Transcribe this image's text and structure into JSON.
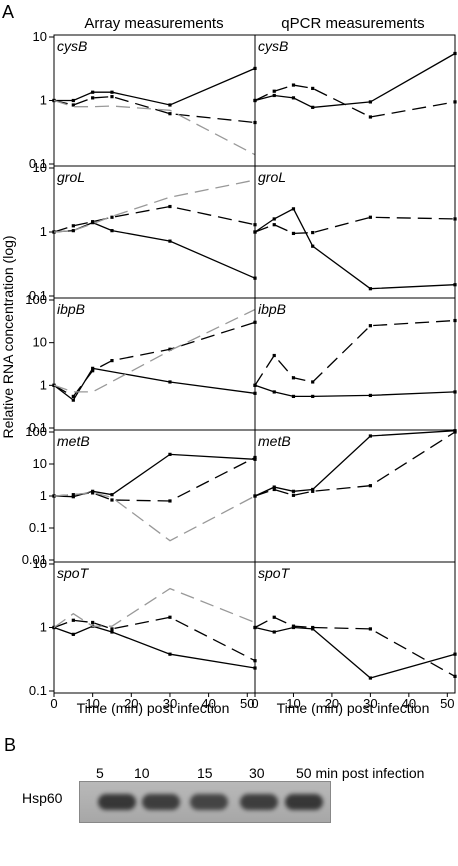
{
  "panel_a_label": "A",
  "panel_b_label": "B",
  "column_titles": [
    "Array measurements",
    "qPCR measurements"
  ],
  "ylabel": "Relative RNA concentration (log)",
  "xlabel": "Time (min) post infection",
  "x_ticks": [
    0,
    10,
    20,
    30,
    40,
    50
  ],
  "series_styles": [
    {
      "dash": "none",
      "color": "#000000",
      "marker": true
    },
    {
      "dash": "14 7",
      "color": "#000000",
      "marker": true
    },
    {
      "dash": "14 7",
      "color": "#999999",
      "marker": false
    }
  ],
  "chart_data": [
    {
      "type": "line",
      "row": 0,
      "col": 0,
      "gene": "cysB",
      "xlim": [
        0,
        52
      ],
      "ylim": [
        0.1,
        10
      ],
      "log_y": true,
      "yticks": [
        0.1,
        1,
        10
      ],
      "ytick_labels": [
        "0.1",
        "1",
        "10"
      ],
      "series": [
        {
          "x": [
            0,
            5,
            10,
            15,
            30,
            52
          ],
          "y": [
            1.0,
            1.0,
            1.35,
            1.35,
            0.85,
            3.2
          ]
        },
        {
          "x": [
            0,
            5,
            10,
            15,
            30,
            52
          ],
          "y": [
            1.0,
            0.85,
            1.1,
            1.15,
            0.62,
            0.45
          ]
        },
        {
          "x": [
            0,
            5,
            10,
            15,
            30,
            52
          ],
          "y": [
            1.0,
            0.8,
            0.8,
            0.82,
            0.7,
            0.14
          ]
        }
      ]
    },
    {
      "type": "line",
      "row": 0,
      "col": 1,
      "gene": "cysB",
      "xlim": [
        0,
        52
      ],
      "ylim": [
        0.1,
        10
      ],
      "log_y": true,
      "series": [
        {
          "x": [
            0,
            5,
            10,
            15,
            30,
            52
          ],
          "y": [
            1.0,
            1.2,
            1.1,
            0.78,
            0.95,
            5.5
          ]
        },
        {
          "x": [
            0,
            5,
            10,
            15,
            30,
            52
          ],
          "y": [
            1.0,
            1.4,
            1.75,
            1.55,
            0.55,
            0.95
          ]
        }
      ]
    },
    {
      "type": "line",
      "row": 1,
      "col": 0,
      "gene": "groL",
      "xlim": [
        0,
        52
      ],
      "ylim": [
        0.1,
        10
      ],
      "log_y": true,
      "yticks": [
        0.1,
        1,
        10
      ],
      "ytick_labels": [
        "0.1",
        "1",
        "10"
      ],
      "series": [
        {
          "x": [
            0,
            5,
            10,
            15,
            30,
            52
          ],
          "y": [
            1.0,
            1.05,
            1.4,
            1.05,
            0.72,
            0.19
          ]
        },
        {
          "x": [
            0,
            5,
            10,
            15,
            30,
            52
          ],
          "y": [
            1.0,
            1.25,
            1.45,
            1.7,
            2.5,
            1.3
          ]
        },
        {
          "x": [
            0,
            5,
            10,
            15,
            30,
            52
          ],
          "y": [
            1.0,
            1.05,
            1.35,
            1.75,
            3.5,
            6.5
          ]
        }
      ]
    },
    {
      "type": "line",
      "row": 1,
      "col": 1,
      "gene": "groL",
      "xlim": [
        0,
        52
      ],
      "ylim": [
        0.1,
        10
      ],
      "log_y": true,
      "series": [
        {
          "x": [
            0,
            5,
            10,
            15,
            30,
            52
          ],
          "y": [
            1.0,
            1.6,
            2.3,
            0.6,
            0.13,
            0.15
          ]
        },
        {
          "x": [
            0,
            5,
            10,
            15,
            30,
            52
          ],
          "y": [
            1.0,
            1.3,
            0.95,
            0.98,
            1.7,
            1.6
          ]
        }
      ]
    },
    {
      "type": "line",
      "row": 2,
      "col": 0,
      "gene": "ibpB",
      "xlim": [
        0,
        52
      ],
      "ylim": [
        0.1,
        100
      ],
      "log_y": true,
      "yticks": [
        0.1,
        1,
        10,
        100
      ],
      "ytick_labels": [
        "0.1",
        "1",
        "10",
        "100"
      ],
      "series": [
        {
          "x": [
            0,
            5,
            10,
            30,
            52
          ],
          "y": [
            1.0,
            0.45,
            2.5,
            1.2,
            0.65
          ]
        },
        {
          "x": [
            0,
            5,
            10,
            15,
            30,
            52
          ],
          "y": [
            1.0,
            0.55,
            2.2,
            3.8,
            7.0,
            30.0
          ]
        },
        {
          "x": [
            0,
            5,
            10,
            30,
            52
          ],
          "y": [
            1.0,
            0.7,
            0.7,
            6.5,
            60.0
          ]
        }
      ]
    },
    {
      "type": "line",
      "row": 2,
      "col": 1,
      "gene": "ibpB",
      "xlim": [
        0,
        52
      ],
      "ylim": [
        0.1,
        100
      ],
      "log_y": true,
      "series": [
        {
          "x": [
            0,
            5,
            10,
            15,
            30,
            52
          ],
          "y": [
            1.0,
            0.7,
            0.55,
            0.55,
            0.58,
            0.7
          ]
        },
        {
          "x": [
            0,
            5,
            10,
            15,
            30,
            52
          ],
          "y": [
            1.0,
            5.0,
            1.5,
            1.2,
            25.0,
            33.0
          ]
        }
      ]
    },
    {
      "type": "line",
      "row": 3,
      "col": 0,
      "gene": "metB",
      "xlim": [
        0,
        52
      ],
      "ylim": [
        0.01,
        100
      ],
      "log_y": true,
      "yticks": [
        0.01,
        0.1,
        1,
        10,
        100
      ],
      "ytick_labels": [
        "0.01",
        "0.1",
        "1",
        "10",
        "100"
      ],
      "series": [
        {
          "x": [
            0,
            5,
            10,
            15,
            30,
            52
          ],
          "y": [
            1.0,
            0.95,
            1.4,
            1.1,
            20.0,
            14.0
          ]
        },
        {
          "x": [
            0,
            5,
            10,
            15,
            30,
            52
          ],
          "y": [
            1.0,
            1.1,
            1.25,
            0.75,
            0.7,
            16.0
          ]
        },
        {
          "x": [
            0,
            5,
            10,
            15,
            30,
            52
          ],
          "y": [
            1.0,
            1.1,
            1.3,
            0.9,
            0.04,
            1.0
          ]
        }
      ]
    },
    {
      "type": "line",
      "row": 3,
      "col": 1,
      "gene": "metB",
      "xlim": [
        0,
        52
      ],
      "ylim": [
        0.01,
        100
      ],
      "log_y": true,
      "series": [
        {
          "x": [
            0,
            5,
            10,
            15,
            30,
            52
          ],
          "y": [
            1.0,
            1.9,
            1.4,
            1.6,
            75.0,
            110.0
          ]
        },
        {
          "x": [
            0,
            5,
            10,
            15,
            30,
            52
          ],
          "y": [
            1.0,
            1.6,
            1.05,
            1.4,
            2.1,
            100.0
          ]
        }
      ]
    },
    {
      "type": "line",
      "row": 4,
      "col": 0,
      "gene": "spoT",
      "xlim": [
        0,
        52
      ],
      "ylim": [
        0.1,
        10
      ],
      "log_y": true,
      "yticks": [
        0.1,
        1,
        10
      ],
      "ytick_labels": [
        "0.1",
        "1",
        "10"
      ],
      "series": [
        {
          "x": [
            0,
            5,
            10,
            15,
            30,
            52
          ],
          "y": [
            1.0,
            0.78,
            1.05,
            0.85,
            0.38,
            0.23
          ]
        },
        {
          "x": [
            0,
            5,
            10,
            15,
            30,
            52
          ],
          "y": [
            1.0,
            1.3,
            1.2,
            0.95,
            1.45,
            0.3
          ]
        },
        {
          "x": [
            0,
            5,
            10,
            15,
            30,
            52
          ],
          "y": [
            1.0,
            1.65,
            1.05,
            1.05,
            4.1,
            1.2
          ]
        }
      ]
    },
    {
      "type": "line",
      "row": 4,
      "col": 1,
      "gene": "spoT",
      "xlim": [
        0,
        52
      ],
      "ylim": [
        0.1,
        10
      ],
      "log_y": true,
      "series": [
        {
          "x": [
            0,
            5,
            10,
            15,
            30,
            52
          ],
          "y": [
            1.0,
            0.85,
            1.0,
            0.95,
            0.16,
            0.38
          ]
        },
        {
          "x": [
            0,
            5,
            10,
            15,
            30,
            52
          ],
          "y": [
            1.0,
            1.45,
            1.05,
            1.0,
            0.95,
            0.17
          ]
        }
      ]
    }
  ],
  "western_blot": {
    "protein": "Hsp60",
    "time_labels": [
      "5",
      "10",
      "15",
      "30",
      "50 min post infection"
    ],
    "band_intensity": [
      0.9,
      0.85,
      0.8,
      0.85,
      0.9
    ]
  }
}
